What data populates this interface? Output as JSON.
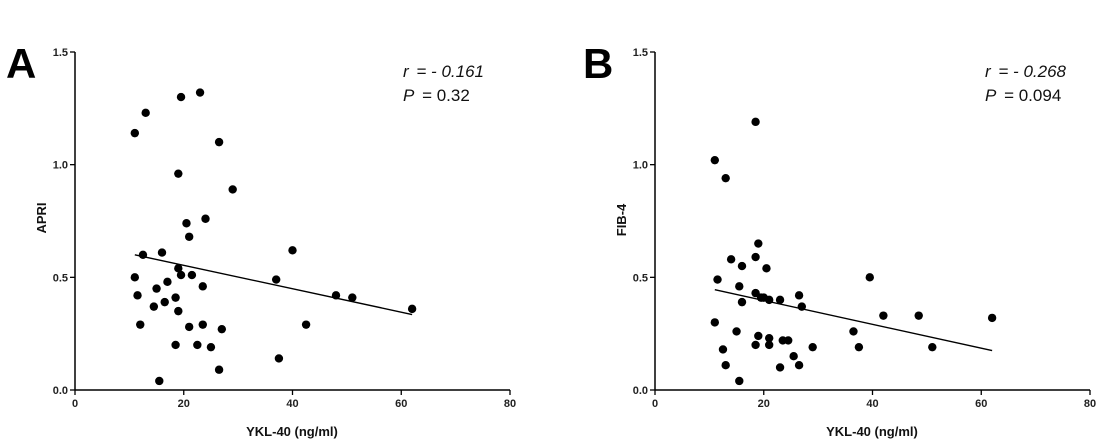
{
  "chart_data": [
    {
      "type": "scatter",
      "panel_label": "A",
      "xlabel": "YKL-40 (ng/ml)",
      "ylabel": "APRI",
      "xlim": [
        0,
        80
      ],
      "ylim": [
        0.0,
        1.5
      ],
      "xticks": [
        0,
        20,
        40,
        60,
        80
      ],
      "yticks": [
        "0.0",
        "0.5",
        "1.0",
        "1.5"
      ],
      "stats": {
        "r_label": "r",
        "r_value": "= - 0.161",
        "p_label": "P",
        "p_value": "= 0.32"
      },
      "trendline": [
        [
          11,
          0.6
        ],
        [
          62,
          0.335
        ]
      ],
      "points": [
        [
          11,
          1.14
        ],
        [
          13,
          1.23
        ],
        [
          19.5,
          1.3
        ],
        [
          23,
          1.32
        ],
        [
          26.5,
          1.1
        ],
        [
          19,
          0.96
        ],
        [
          29,
          0.89
        ],
        [
          20.5,
          0.74
        ],
        [
          24,
          0.76
        ],
        [
          21,
          0.68
        ],
        [
          40,
          0.62
        ],
        [
          12.5,
          0.6
        ],
        [
          16,
          0.61
        ],
        [
          11,
          0.5
        ],
        [
          19,
          0.54
        ],
        [
          19.5,
          0.51
        ],
        [
          21.5,
          0.51
        ],
        [
          37,
          0.49
        ],
        [
          17,
          0.48
        ],
        [
          15,
          0.45
        ],
        [
          23.5,
          0.46
        ],
        [
          11.5,
          0.42
        ],
        [
          18.5,
          0.41
        ],
        [
          16.5,
          0.39
        ],
        [
          14.5,
          0.37
        ],
        [
          48,
          0.42
        ],
        [
          51,
          0.41
        ],
        [
          62,
          0.36
        ],
        [
          19,
          0.35
        ],
        [
          12,
          0.29
        ],
        [
          21,
          0.28
        ],
        [
          23.5,
          0.29
        ],
        [
          27,
          0.27
        ],
        [
          42.5,
          0.29
        ],
        [
          18.5,
          0.2
        ],
        [
          22.5,
          0.2
        ],
        [
          25,
          0.19
        ],
        [
          37.5,
          0.14
        ],
        [
          26.5,
          0.09
        ],
        [
          15.5,
          0.04
        ]
      ]
    },
    {
      "type": "scatter",
      "panel_label": "B",
      "xlabel": "YKL-40 (ng/ml)",
      "ylabel": "FIB-4",
      "xlim": [
        0,
        80
      ],
      "ylim": [
        0.0,
        1.5
      ],
      "xticks": [
        0,
        20,
        40,
        60,
        80
      ],
      "yticks": [
        "0.0",
        "0.5",
        "1.0",
        "1.5"
      ],
      "stats": {
        "r_label": "r",
        "r_value": "= - 0.268",
        "p_label": "P",
        "p_value": "= 0.094"
      },
      "trendline": [
        [
          11,
          0.445
        ],
        [
          62,
          0.175
        ]
      ],
      "points": [
        [
          18.5,
          1.19
        ],
        [
          11,
          1.02
        ],
        [
          13,
          0.94
        ],
        [
          19,
          0.65
        ],
        [
          14,
          0.58
        ],
        [
          18.5,
          0.59
        ],
        [
          20.5,
          0.54
        ],
        [
          16,
          0.55
        ],
        [
          39.5,
          0.5
        ],
        [
          11.5,
          0.49
        ],
        [
          15.5,
          0.46
        ],
        [
          18.5,
          0.43
        ],
        [
          19.5,
          0.41
        ],
        [
          21,
          0.4
        ],
        [
          23,
          0.4
        ],
        [
          26.5,
          0.42
        ],
        [
          16,
          0.39
        ],
        [
          20,
          0.41
        ],
        [
          27,
          0.37
        ],
        [
          42,
          0.33
        ],
        [
          48.5,
          0.33
        ],
        [
          62,
          0.32
        ],
        [
          11,
          0.3
        ],
        [
          15,
          0.26
        ],
        [
          19,
          0.24
        ],
        [
          21,
          0.23
        ],
        [
          23.5,
          0.22
        ],
        [
          24.5,
          0.22
        ],
        [
          36.5,
          0.26
        ],
        [
          18.5,
          0.2
        ],
        [
          21,
          0.2
        ],
        [
          29,
          0.19
        ],
        [
          37.5,
          0.19
        ],
        [
          51,
          0.19
        ],
        [
          12.5,
          0.18
        ],
        [
          25.5,
          0.15
        ],
        [
          13,
          0.11
        ],
        [
          23,
          0.1
        ],
        [
          26.5,
          0.11
        ],
        [
          15.5,
          0.04
        ]
      ]
    }
  ]
}
